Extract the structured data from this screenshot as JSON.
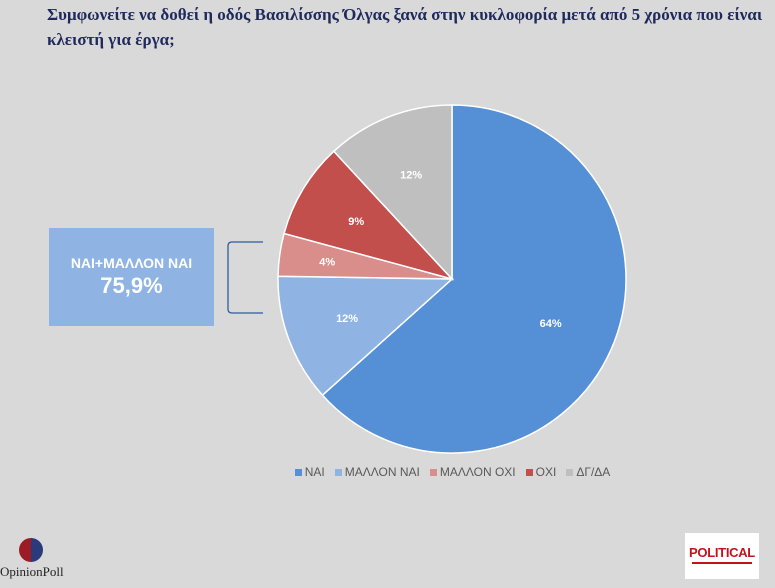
{
  "title": "Συμφωνείτε να δοθεί η οδός Βασιλίσσης Όλγας ξανά στην κυκλοφορία μετά από 5 χρόνια που είναι κλειστή για έργα;",
  "callout": {
    "label": "ΝΑΙ+ΜΑΛΛΟΝ ΝΑΙ",
    "value": "75,9%"
  },
  "logos": {
    "left": "OpinionPoll",
    "right": "POLITICAL"
  },
  "chart_data": {
    "type": "pie",
    "title": "Συμφωνείτε να δοθεί η οδός Βασιλίσσης Όλγας ξανά στην κυκλοφορία μετά από 5 χρόνια που είναι κλειστή για έργα;",
    "slices": [
      {
        "name": "ΝΑΙ",
        "value": 64,
        "label": "64%",
        "color": "#5590d6"
      },
      {
        "name": "ΜΑΛΛΟΝ ΝΑΙ",
        "value": 12,
        "label": "12%",
        "color": "#8fb4e3"
      },
      {
        "name": "ΜΑΛΛΟΝ ΟΧΙ",
        "value": 4,
        "label": "4%",
        "color": "#d98e8c"
      },
      {
        "name": "ΟΧΙ",
        "value": 9,
        "label": "9%",
        "color": "#c24f4c"
      },
      {
        "name": "ΔΓ/ΔΑ",
        "value": 12,
        "label": "12%",
        "color": "#bfbfbf"
      }
    ],
    "legend_position": "bottom"
  }
}
